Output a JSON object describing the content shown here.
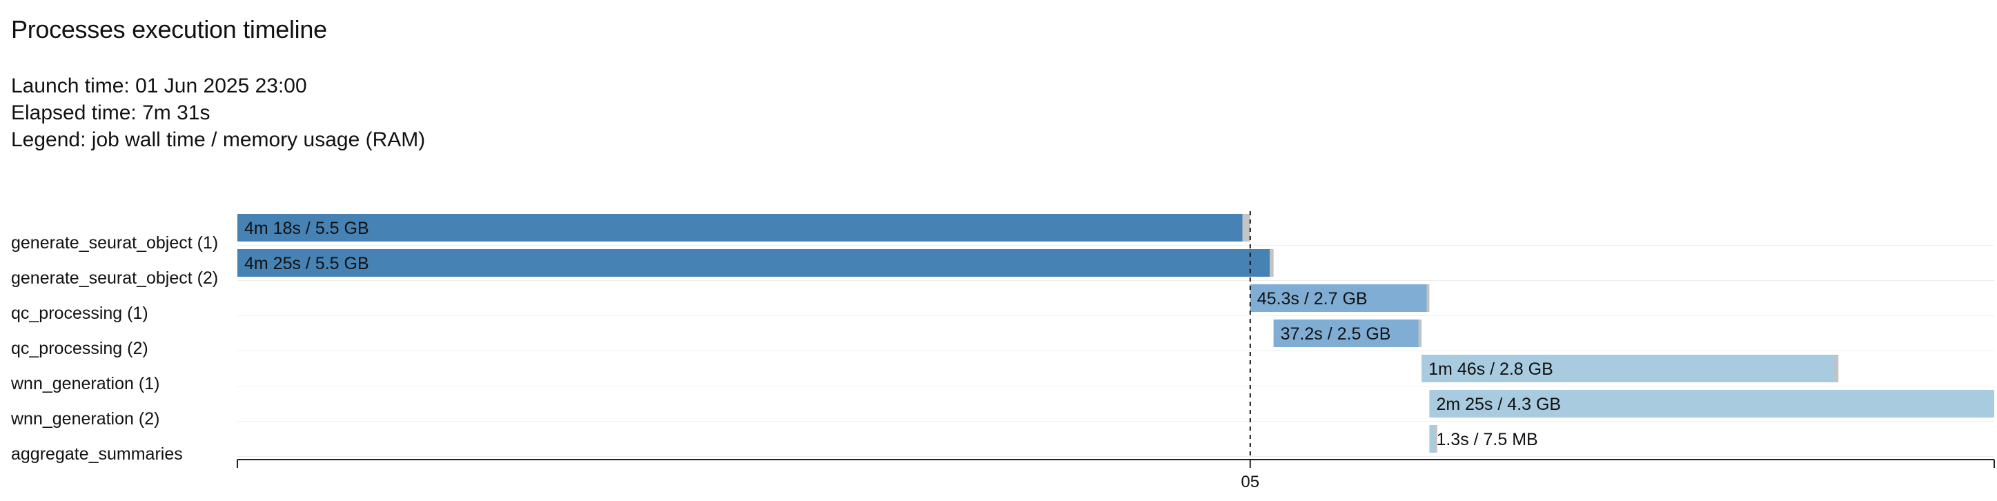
{
  "header": {
    "title": "Processes execution timeline",
    "launch_time": "Launch time: 01 Jun 2025 23:00",
    "elapsed_time": "Elapsed time: 7m 31s",
    "legend": "Legend: job wall time / memory usage (RAM)"
  },
  "chart_data": {
    "type": "bar",
    "title": "",
    "x_unit": "seconds since launch",
    "xlim": [
      0,
      451
    ],
    "x_ticks": [
      {
        "value": 260,
        "label": "05"
      }
    ],
    "marker_line_x": 260,
    "tasks": [
      {
        "name": "generate_seurat_object (1)",
        "start": 0,
        "wall": 258,
        "total_end": 260,
        "label": "4m 18s / 5.5 GB",
        "color": "#4682b4"
      },
      {
        "name": "generate_seurat_object (2)",
        "start": 0,
        "wall": 265,
        "total_end": 266,
        "label": "4m 25s / 5.5 GB",
        "color": "#4682b4"
      },
      {
        "name": "qc_processing (1)",
        "start": 260,
        "wall": 45.3,
        "total_end": 306,
        "label": "45.3s / 2.7 GB",
        "color": "#7fadd3"
      },
      {
        "name": "qc_processing (2)",
        "start": 266,
        "wall": 37.2,
        "total_end": 304,
        "label": "37.2s / 2.5 GB",
        "color": "#7fadd3"
      },
      {
        "name": "wnn_generation (1)",
        "start": 304,
        "wall": 106,
        "total_end": 411,
        "label": "1m 46s / 2.8 GB",
        "color": "#a8cbe0"
      },
      {
        "name": "wnn_generation (2)",
        "start": 306,
        "wall": 145,
        "total_end": 451,
        "label": "2m 25s / 4.3 GB",
        "color": "#a8cbe0"
      },
      {
        "name": "aggregate_summaries",
        "start": 306,
        "wall": 1.3,
        "total_end": 308,
        "label": "1.3s / 7.5 MB",
        "color": "#a8cbe0"
      }
    ]
  }
}
